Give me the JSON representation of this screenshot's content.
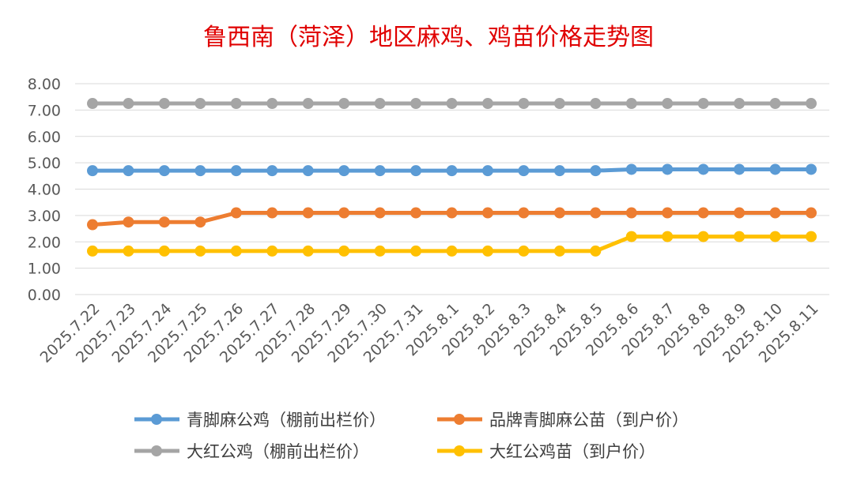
{
  "chart_data": {
    "type": "line",
    "title": "鲁西南（菏泽）地区麻鸡、鸡苗价格走势图",
    "xlabel": "",
    "ylabel": "",
    "ylim": [
      0,
      8
    ],
    "y_ticks": [
      "0.00",
      "1.00",
      "2.00",
      "3.00",
      "4.00",
      "5.00",
      "6.00",
      "7.00",
      "8.00"
    ],
    "grid": true,
    "legend_position": "bottom",
    "categories": [
      "2025.7.22",
      "2025.7.23",
      "2025.7.24",
      "2025.7.25",
      "2025.7.26",
      "2025.7.27",
      "2025.7.28",
      "2025.7.29",
      "2025.7.30",
      "2025.7.31",
      "2025.8.1",
      "2025.8.2",
      "2025.8.3",
      "2025.8.4",
      "2025.8.5",
      "2025.8.6",
      "2025.8.7",
      "2025.8.8",
      "2025.8.9",
      "2025.8.10",
      "2025.8.11"
    ],
    "series": [
      {
        "name": "青脚麻公鸡（棚前出栏价）",
        "color": "#5b9bd5",
        "values": [
          4.7,
          4.7,
          4.7,
          4.7,
          4.7,
          4.7,
          4.7,
          4.7,
          4.7,
          4.7,
          4.7,
          4.7,
          4.7,
          4.7,
          4.7,
          4.75,
          4.75,
          4.75,
          4.75,
          4.75,
          4.75
        ]
      },
      {
        "name": "品牌青脚麻公苗（到户价）",
        "color": "#ed7d31",
        "values": [
          2.65,
          2.75,
          2.75,
          2.75,
          3.1,
          3.1,
          3.1,
          3.1,
          3.1,
          3.1,
          3.1,
          3.1,
          3.1,
          3.1,
          3.1,
          3.1,
          3.1,
          3.1,
          3.1,
          3.1,
          3.1
        ]
      },
      {
        "name": "大红公鸡（棚前出栏价）",
        "color": "#a5a5a5",
        "values": [
          7.25,
          7.25,
          7.25,
          7.25,
          7.25,
          7.25,
          7.25,
          7.25,
          7.25,
          7.25,
          7.25,
          7.25,
          7.25,
          7.25,
          7.25,
          7.25,
          7.25,
          7.25,
          7.25,
          7.25,
          7.25
        ]
      },
      {
        "name": "大红公鸡苗（到户价）",
        "color": "#ffc000",
        "values": [
          1.65,
          1.65,
          1.65,
          1.65,
          1.65,
          1.65,
          1.65,
          1.65,
          1.65,
          1.65,
          1.65,
          1.65,
          1.65,
          1.65,
          1.65,
          2.2,
          2.2,
          2.2,
          2.2,
          2.2,
          2.2
        ]
      }
    ]
  }
}
